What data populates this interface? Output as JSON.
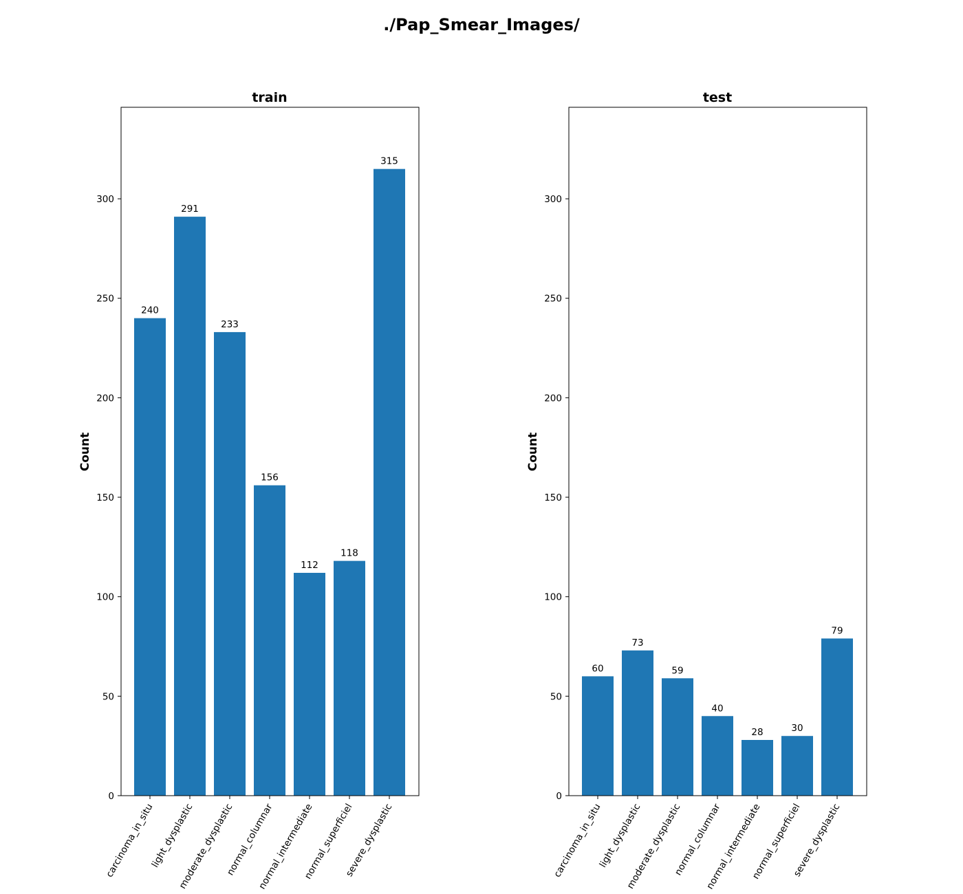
{
  "figure": {
    "title": "./Pap_Smear_Images/",
    "bar_color": "#1f77b4"
  },
  "chart_data": [
    {
      "type": "bar",
      "title": "train",
      "xlabel": "",
      "ylabel": "Count",
      "categories": [
        "carcinoma_in_situ",
        "light_dysplastic",
        "moderate_dysplastic",
        "normal_columnar",
        "normal_intermediate",
        "normal_superficiel",
        "severe_dysplastic"
      ],
      "values": [
        240,
        291,
        233,
        156,
        112,
        118,
        315
      ],
      "ylim": [
        0,
        346
      ],
      "yticks": [
        0,
        50,
        100,
        150,
        200,
        250,
        300
      ],
      "grid": false,
      "legend": "none"
    },
    {
      "type": "bar",
      "title": "test",
      "xlabel": "",
      "ylabel": "Count",
      "categories": [
        "carcinoma_in_situ",
        "light_dysplastic",
        "moderate_dysplastic",
        "normal_columnar",
        "normal_intermediate",
        "normal_superficiel",
        "severe_dysplastic"
      ],
      "values": [
        60,
        73,
        59,
        40,
        28,
        30,
        79
      ],
      "ylim": [
        0,
        346
      ],
      "yticks": [
        0,
        50,
        100,
        150,
        200,
        250,
        300
      ],
      "grid": false,
      "legend": "none"
    }
  ]
}
